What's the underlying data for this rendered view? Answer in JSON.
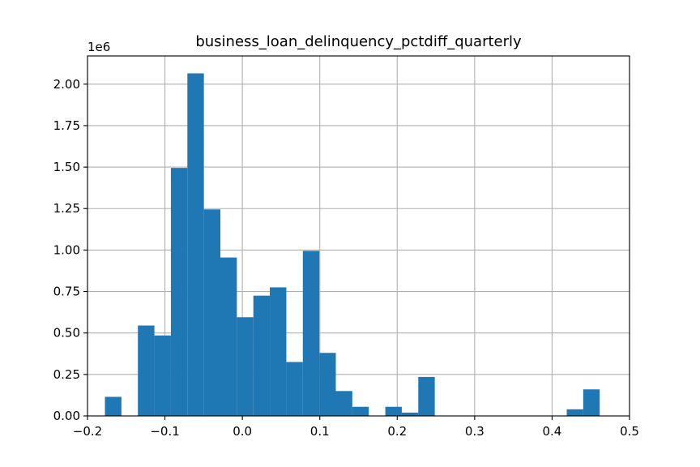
{
  "chart_data": {
    "type": "bar",
    "subtype": "histogram",
    "title": "business_loan_delinquency_pctdiff_quarterly",
    "y_offset_label": "1e6",
    "y_scale": 1000000,
    "bar_color": "#1f77b4",
    "grid": true,
    "xlim": [
      -0.2,
      0.5
    ],
    "ylim": [
      0,
      2.17
    ],
    "x_ticks": [
      -0.2,
      -0.1,
      0.0,
      0.1,
      0.2,
      0.3,
      0.4,
      0.5
    ],
    "x_tick_labels": [
      "−0.2",
      "−0.1",
      "0.0",
      "0.1",
      "0.2",
      "0.3",
      "0.4",
      "0.5"
    ],
    "y_ticks": [
      0,
      0.25,
      0.5,
      0.75,
      1.0,
      1.25,
      1.5,
      1.75,
      2.0
    ],
    "y_tick_labels": [
      "0.00",
      "0.25",
      "0.50",
      "0.75",
      "1.00",
      "1.25",
      "1.50",
      "1.75",
      "2.00"
    ],
    "bins": [
      {
        "x0": -0.1775,
        "x1": -0.1562,
        "value": 0.115
      },
      {
        "x0": -0.1562,
        "x1": -0.1349,
        "value": 0
      },
      {
        "x0": -0.1349,
        "x1": -0.1136,
        "value": 0.545
      },
      {
        "x0": -0.1136,
        "x1": -0.0923,
        "value": 0.485
      },
      {
        "x0": -0.0923,
        "x1": -0.071,
        "value": 1.495
      },
      {
        "x0": -0.071,
        "x1": -0.0497,
        "value": 2.065
      },
      {
        "x0": -0.0497,
        "x1": -0.0284,
        "value": 1.245
      },
      {
        "x0": -0.0284,
        "x1": -0.0071,
        "value": 0.955
      },
      {
        "x0": -0.0071,
        "x1": 0.0142,
        "value": 0.595
      },
      {
        "x0": 0.0142,
        "x1": 0.0355,
        "value": 0.725
      },
      {
        "x0": 0.0355,
        "x1": 0.0568,
        "value": 0.775
      },
      {
        "x0": 0.0568,
        "x1": 0.0781,
        "value": 0.325
      },
      {
        "x0": 0.0781,
        "x1": 0.0994,
        "value": 0.995
      },
      {
        "x0": 0.0994,
        "x1": 0.1207,
        "value": 0.38
      },
      {
        "x0": 0.1207,
        "x1": 0.142,
        "value": 0.15
      },
      {
        "x0": 0.142,
        "x1": 0.1633,
        "value": 0.055
      },
      {
        "x0": 0.1633,
        "x1": 0.1846,
        "value": 0
      },
      {
        "x0": 0.1846,
        "x1": 0.2059,
        "value": 0.055
      },
      {
        "x0": 0.2059,
        "x1": 0.2272,
        "value": 0.02
      },
      {
        "x0": 0.2272,
        "x1": 0.2485,
        "value": 0.235
      },
      {
        "x0": 0.2485,
        "x1": 0.2698,
        "value": 0
      },
      {
        "x0": 0.2698,
        "x1": 0.2911,
        "value": 0
      },
      {
        "x0": 0.2911,
        "x1": 0.3124,
        "value": 0
      },
      {
        "x0": 0.3124,
        "x1": 0.3337,
        "value": 0
      },
      {
        "x0": 0.3337,
        "x1": 0.355,
        "value": 0
      },
      {
        "x0": 0.355,
        "x1": 0.3763,
        "value": 0
      },
      {
        "x0": 0.3763,
        "x1": 0.3976,
        "value": 0
      },
      {
        "x0": 0.3976,
        "x1": 0.4189,
        "value": 0
      },
      {
        "x0": 0.4189,
        "x1": 0.4402,
        "value": 0.04
      },
      {
        "x0": 0.4402,
        "x1": 0.4615,
        "value": 0.16
      }
    ]
  }
}
